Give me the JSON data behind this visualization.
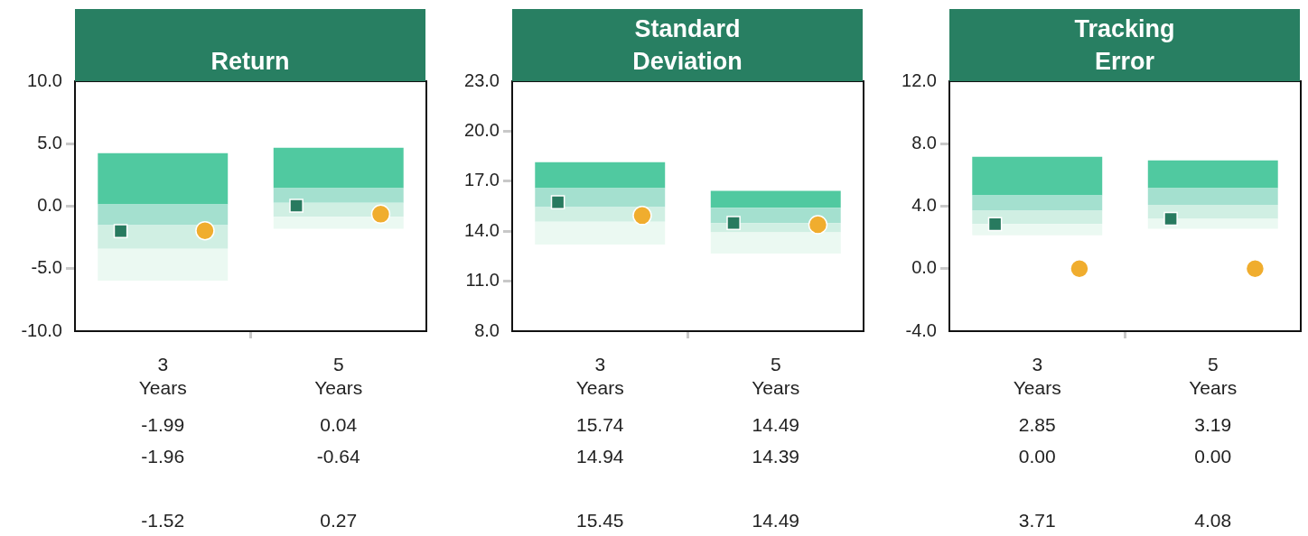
{
  "chart_data": [
    {
      "type": "bar",
      "title": "Return",
      "categories": [
        "3 Years",
        "5 Years"
      ],
      "ylim": [
        -10,
        10
      ],
      "yticks": [
        {
          "value": -10,
          "label": "-10.0"
        },
        {
          "value": -5,
          "label": "-5.0"
        },
        {
          "value": 0,
          "label": "0.0"
        },
        {
          "value": 5,
          "label": "5.0"
        },
        {
          "value": 10,
          "label": "10.0"
        }
      ],
      "series": [
        {
          "color": "#ebf9f2",
          "base": [
            -5.95,
            -1.81
          ],
          "values": [
            2.53,
            0.97
          ]
        },
        {
          "color": "#d0efe3",
          "base": [
            -3.42,
            -0.84
          ],
          "values": [
            1.9,
            1.11
          ]
        },
        {
          "color": "#a4e0cf",
          "base": [
            -1.52,
            0.27
          ],
          "values": [
            1.66,
            1.18
          ]
        },
        {
          "color": "#50c9a0",
          "base": [
            0.14,
            1.45
          ],
          "values": [
            4.1,
            3.22
          ]
        },
        {
          "type": "scatter",
          "marker": "square",
          "color": "#287a5f",
          "values": [
            -1.99,
            0.04
          ],
          "value_labels": [
            "-1.99",
            "0.04"
          ]
        },
        {
          "type": "scatter",
          "marker": "circle",
          "color": "#f0ad2e",
          "values": [
            -1.96,
            -0.64
          ],
          "value_labels": [
            "-1.96",
            "-0.64"
          ]
        }
      ],
      "annotations": [
        "-1.52",
        "0.27"
      ]
    },
    {
      "type": "bar",
      "title": "Standard Deviation",
      "categories": [
        "3 Years",
        "5 Years"
      ],
      "ylim": [
        8,
        23
      ],
      "yticks": [
        {
          "value": 8,
          "label": "8.0"
        },
        {
          "value": 11,
          "label": "11.0"
        },
        {
          "value": 14,
          "label": "14.0"
        },
        {
          "value": 17,
          "label": "17.0"
        },
        {
          "value": 20,
          "label": "20.0"
        },
        {
          "value": 23,
          "label": "23.0"
        }
      ],
      "series": [
        {
          "color": "#ebf9f2",
          "base": [
            13.2,
            12.66
          ],
          "values": [
            1.36,
            1.27
          ]
        },
        {
          "color": "#d0efe3",
          "base": [
            14.56,
            13.93
          ],
          "values": [
            0.89,
            0.56
          ]
        },
        {
          "color": "#a4e0cf",
          "base": [
            15.45,
            14.49
          ],
          "values": [
            1.13,
            0.92
          ]
        },
        {
          "color": "#50c9a0",
          "base": [
            16.58,
            15.41
          ],
          "values": [
            1.56,
            1.01
          ]
        },
        {
          "type": "scatter",
          "marker": "square",
          "color": "#287a5f",
          "values": [
            15.74,
            14.49
          ],
          "value_labels": [
            "15.74",
            "14.49"
          ]
        },
        {
          "type": "scatter",
          "marker": "circle",
          "color": "#f0ad2e",
          "values": [
            14.94,
            14.39
          ],
          "value_labels": [
            "14.94",
            "14.39"
          ]
        }
      ],
      "annotations": [
        "15.45",
        "14.49"
      ]
    },
    {
      "type": "bar",
      "title": "Tracking Error",
      "categories": [
        "3 Years",
        "5 Years"
      ],
      "ylim": [
        -4,
        12
      ],
      "yticks": [
        {
          "value": -4,
          "label": "-4.0"
        },
        {
          "value": 0,
          "label": "0.0"
        },
        {
          "value": 4,
          "label": "4.0"
        },
        {
          "value": 8,
          "label": "8.0"
        },
        {
          "value": 12,
          "label": "12.0"
        }
      ],
      "series": [
        {
          "color": "#ebf9f2",
          "base": [
            2.13,
            2.55
          ],
          "values": [
            0.73,
            0.64
          ]
        },
        {
          "color": "#d0efe3",
          "base": [
            2.86,
            3.19
          ],
          "values": [
            0.85,
            0.89
          ]
        },
        {
          "color": "#a4e0cf",
          "base": [
            3.71,
            4.08
          ],
          "values": [
            0.98,
            1.08
          ]
        },
        {
          "color": "#50c9a0",
          "base": [
            4.69,
            5.16
          ],
          "values": [
            2.47,
            1.77
          ]
        },
        {
          "type": "scatter",
          "marker": "square",
          "color": "#287a5f",
          "values": [
            2.85,
            3.19
          ],
          "value_labels": [
            "2.85",
            "3.19"
          ]
        },
        {
          "type": "scatter",
          "marker": "circle",
          "color": "#f0ad2e",
          "values": [
            0,
            0
          ],
          "value_labels": [
            "0.00",
            "0.00"
          ]
        }
      ],
      "annotations": [
        "3.71",
        "4.08"
      ]
    }
  ]
}
